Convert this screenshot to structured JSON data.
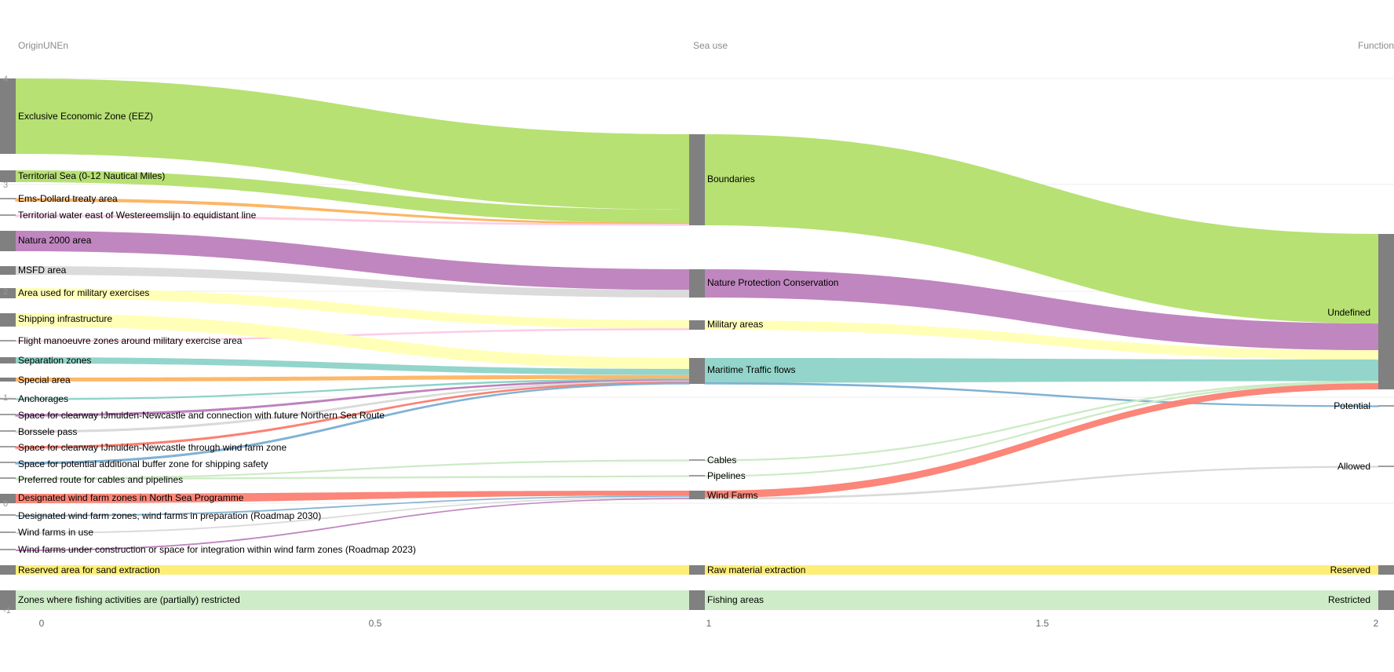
{
  "chart_data": {
    "type": "sankey",
    "title": "",
    "columns": [
      "OriginUNEn",
      "Sea use",
      "Function"
    ],
    "colors": {
      "green": "#b3df6c",
      "purple": "#bd80bd",
      "lightgray": "#d9d9d9",
      "lightyellow": "#ffffb3",
      "teal": "#8dd3c7",
      "orange": "#fdb462",
      "red": "#fb8072",
      "blue": "#80b1d3",
      "lightpink": "#fccde5",
      "lightgreen": "#ccebc5",
      "yellow": "#ffed6f",
      "node": "#808080"
    },
    "x_axis": {
      "ticks": [
        "0",
        "0.5",
        "1",
        "1.5",
        "2"
      ]
    },
    "y_axis": {
      "ticks": [
        "4",
        "3",
        "2",
        "1",
        "0",
        "-1"
      ]
    },
    "nodes_origin": [
      "Exclusive Economic Zone (EEZ)",
      "Territorial Sea (0-12 Nautical Miles)",
      "Ems-Dollard treaty area",
      "Territorial water east of Westereemslijn to equidistant line",
      "Natura 2000 area",
      "MSFD area",
      "Area used for military exercises",
      "Shipping infrastructure",
      "Flight manoeuvre zones around military exercise area",
      "Separation zones",
      "Special area",
      "Anchorages",
      "Space for clearway IJmuiden-Newcastle and connection with future Northern Sea Route",
      "Borssele pass",
      "Space for clearway IJmuiden-Newcastle through wind farm zone",
      "Space for potential additional buffer zone for shipping safety",
      "Preferred route for cables and pipelines",
      "Designated wind farm zones in North Sea Programme",
      "Designated wind farm zones, wind farms in preparation (Roadmap 2030)",
      "Wind farms in use",
      "Wind farms under construction or space for integration within wind farm zones (Roadmap 2023)",
      "Reserved area for sand extraction",
      "Zones where fishing activities are (partially) restricted"
    ],
    "nodes_use": [
      "Boundaries",
      "Nature Protection Conservation",
      "Military areas",
      "Maritime Traffic flows",
      "Cables",
      "Pipelines",
      "Wind Farms",
      "Raw material extraction",
      "Fishing areas"
    ],
    "nodes_function": [
      "Undefined",
      "Potential",
      "Allowed",
      "Reserved",
      "Restricted"
    ],
    "links_origin_to_use": [
      {
        "source": "Exclusive Economic Zone (EEZ)",
        "target": "Boundaries",
        "value": 0.72,
        "color": "green"
      },
      {
        "source": "Territorial Sea (0-12 Nautical Miles)",
        "target": "Boundaries",
        "value": 0.13,
        "color": "green"
      },
      {
        "source": "Ems-Dollard treaty area",
        "target": "Boundaries",
        "value": 0.01,
        "color": "orange"
      },
      {
        "source": "Territorial water east of Westereemslijn to equidistant line",
        "target": "Boundaries",
        "value": 0.01,
        "color": "lightpink"
      },
      {
        "source": "Natura 2000 area",
        "target": "Nature Protection Conservation",
        "value": 0.19,
        "color": "purple"
      },
      {
        "source": "MSFD area",
        "target": "Nature Protection Conservation",
        "value": 0.07,
        "color": "lightgray"
      },
      {
        "source": "Area used for military exercises",
        "target": "Military areas",
        "value": 0.08,
        "color": "lightyellow"
      },
      {
        "source": "Flight manoeuvre zones around military exercise area",
        "target": "Military areas",
        "value": 0.01,
        "color": "lightpink"
      },
      {
        "source": "Shipping infrastructure",
        "target": "Maritime Traffic flows",
        "value": 0.11,
        "color": "lightyellow"
      },
      {
        "source": "Separation zones",
        "target": "Maritime Traffic flows",
        "value": 0.06,
        "color": "teal"
      },
      {
        "source": "Special area",
        "target": "Maritime Traffic flows",
        "value": 0.04,
        "color": "orange"
      },
      {
        "source": "Anchorages",
        "target": "Maritime Traffic flows",
        "value": 0.01,
        "color": "teal"
      },
      {
        "source": "Space for clearway IJmuiden-Newcastle and connection with future Northern Sea Route",
        "target": "Maritime Traffic flows",
        "value": 0.01,
        "color": "purple"
      },
      {
        "source": "Borssele pass",
        "target": "Maritime Traffic flows",
        "value": 0.01,
        "color": "lightgray"
      },
      {
        "source": "Space for clearway IJmuiden-Newcastle through wind farm zone",
        "target": "Maritime Traffic flows",
        "value": 0.01,
        "color": "red"
      },
      {
        "source": "Space for potential additional buffer zone for shipping safety",
        "target": "Maritime Traffic flows",
        "value": 0.01,
        "color": "blue"
      },
      {
        "source": "Preferred route for cables and pipelines",
        "target": "Cables",
        "value": 0.01,
        "color": "lightgreen"
      },
      {
        "source": "Preferred route for cables and pipelines",
        "target": "Pipelines",
        "value": 0.01,
        "color": "lightgreen"
      },
      {
        "source": "Designated wind farm zones in North Sea Programme",
        "target": "Wind Farms",
        "value": 0.04,
        "color": "red"
      },
      {
        "source": "Designated wind farm zones, wind farms in preparation (Roadmap 2030)",
        "target": "Wind Farms",
        "value": 0.01,
        "color": "blue"
      },
      {
        "source": "Wind farms in use",
        "target": "Wind Farms",
        "value": 0.01,
        "color": "lightgray"
      },
      {
        "source": "Wind farms under construction or space for integration within wind farm zones (Roadmap 2023)",
        "target": "Wind Farms",
        "value": 0.01,
        "color": "purple"
      },
      {
        "source": "Reserved area for sand extraction",
        "target": "Raw material extraction",
        "value": 0.07,
        "color": "yellow"
      },
      {
        "source": "Zones where fishing activities are (partially) restricted",
        "target": "Fishing areas",
        "value": 0.17,
        "color": "lightgreen"
      }
    ],
    "links_use_to_function": [
      {
        "source": "Boundaries",
        "target": "Undefined",
        "value": 0.87,
        "color": "green"
      },
      {
        "source": "Nature Protection Conservation",
        "target": "Undefined",
        "value": 0.26,
        "color": "purple"
      },
      {
        "source": "Military areas",
        "target": "Undefined",
        "value": 0.09,
        "color": "lightyellow"
      },
      {
        "source": "Maritime Traffic flows",
        "target": "Undefined",
        "value": 0.21,
        "color": "teal"
      },
      {
        "source": "Maritime Traffic flows",
        "target": "Potential",
        "value": 0.01,
        "color": "blue"
      },
      {
        "source": "Cables",
        "target": "Undefined",
        "value": 0.01,
        "color": "lightgreen"
      },
      {
        "source": "Pipelines",
        "target": "Undefined",
        "value": 0.01,
        "color": "lightgreen"
      },
      {
        "source": "Wind Farms",
        "target": "Undefined",
        "value": 0.06,
        "color": "red"
      },
      {
        "source": "Wind Farms",
        "target": "Allowed",
        "value": 0.01,
        "color": "lightgray"
      },
      {
        "source": "Raw material extraction",
        "target": "Reserved",
        "value": 0.07,
        "color": "yellow"
      },
      {
        "source": "Fishing areas",
        "target": "Restricted",
        "value": 0.17,
        "color": "lightgreen"
      }
    ]
  }
}
